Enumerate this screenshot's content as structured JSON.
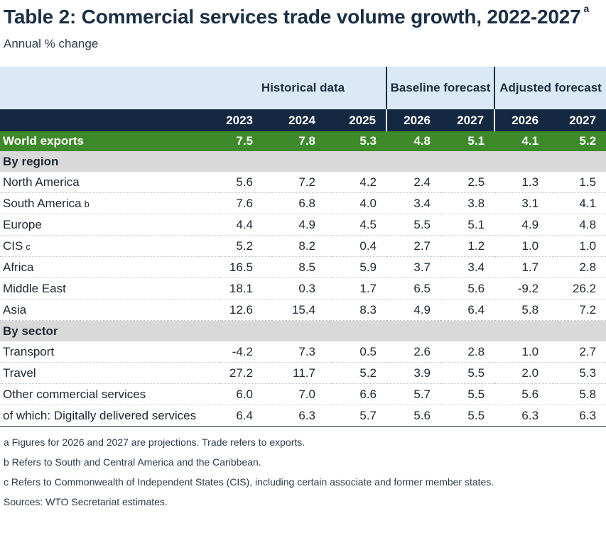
{
  "title": "Table 2: Commercial services trade volume growth, 2022-2027",
  "title_note": "a",
  "subtitle": "Annual % change",
  "groups": {
    "historical": "Historical data",
    "baseline": "Baseline forecast",
    "adjusted": "Adjusted forecast"
  },
  "years": [
    "2023",
    "2024",
    "2025",
    "2026",
    "2027",
    "2026",
    "2027"
  ],
  "world": {
    "label": "World exports",
    "values": [
      "7.5",
      "7.8",
      "5.3",
      "4.8",
      "5.1",
      "4.1",
      "5.2"
    ]
  },
  "by_region": {
    "label": "By region",
    "rows": [
      {
        "label": "North America",
        "note": "",
        "values": [
          "5.6",
          "7.2",
          "4.2",
          "2.4",
          "2.5",
          "1.3",
          "1.5"
        ]
      },
      {
        "label": "South America",
        "note": "b",
        "values": [
          "7.6",
          "6.8",
          "4.0",
          "3.4",
          "3.8",
          "3.1",
          "4.1"
        ]
      },
      {
        "label": "Europe",
        "note": "",
        "values": [
          "4.4",
          "4.9",
          "4.5",
          "5.5",
          "5.1",
          "4.9",
          "4.8"
        ]
      },
      {
        "label": "CIS",
        "note": "c",
        "values": [
          "5.2",
          "8.2",
          "0.4",
          "2.7",
          "1.2",
          "1.0",
          "1.0"
        ]
      },
      {
        "label": "Africa",
        "note": "",
        "values": [
          "16.5",
          "8.5",
          "5.9",
          "3.7",
          "3.4",
          "1.7",
          "2.8"
        ]
      },
      {
        "label": "Middle East",
        "note": "",
        "values": [
          "18.1",
          "0.3",
          "1.7",
          "6.5",
          "5.6",
          "-9.2",
          "26.2"
        ]
      },
      {
        "label": "Asia",
        "note": "",
        "values": [
          "12.6",
          "15.4",
          "8.3",
          "4.9",
          "6.4",
          "5.8",
          "7.2"
        ]
      }
    ]
  },
  "by_sector": {
    "label": "By sector",
    "rows": [
      {
        "label": "Transport",
        "note": "",
        "values": [
          "-4.2",
          "7.3",
          "0.5",
          "2.6",
          "2.8",
          "1.0",
          "2.7"
        ]
      },
      {
        "label": "Travel",
        "note": "",
        "values": [
          "27.2",
          "11.7",
          "5.2",
          "3.9",
          "5.5",
          "2.0",
          "5.3"
        ]
      },
      {
        "label": "Other commercial services",
        "note": "",
        "values": [
          "6.0",
          "7.0",
          "6.6",
          "5.7",
          "5.5",
          "5.6",
          "5.8"
        ]
      },
      {
        "label": "of which: Digitally delivered services",
        "note": "",
        "values": [
          "6.4",
          "6.3",
          "5.7",
          "5.6",
          "5.5",
          "6.3",
          "6.3"
        ]
      }
    ]
  },
  "notes": [
    "a  Figures for 2026 and 2027 are projections. Trade refers to exports.",
    "b  Refers to South and Central America and the Caribbean.",
    "c  Refers to Commonwealth of Independent States (CIS), including certain associate and former member states.",
    "Sources: WTO Secretariat estimates."
  ],
  "chart_data": {
    "type": "table",
    "title": "Table 2: Commercial services trade volume growth, 2022-2027",
    "subtitle": "Annual % change",
    "columns": [
      "Historical 2023",
      "Historical 2024",
      "Historical 2025",
      "Baseline 2026",
      "Baseline 2027",
      "Adjusted 2026",
      "Adjusted 2027"
    ],
    "rows": [
      {
        "name": "World exports",
        "values": [
          7.5,
          7.8,
          5.3,
          4.8,
          5.1,
          4.1,
          5.2
        ]
      },
      {
        "name": "North America",
        "values": [
          5.6,
          7.2,
          4.2,
          2.4,
          2.5,
          1.3,
          1.5
        ]
      },
      {
        "name": "South America",
        "values": [
          7.6,
          6.8,
          4.0,
          3.4,
          3.8,
          3.1,
          4.1
        ]
      },
      {
        "name": "Europe",
        "values": [
          4.4,
          4.9,
          4.5,
          5.5,
          5.1,
          4.9,
          4.8
        ]
      },
      {
        "name": "CIS",
        "values": [
          5.2,
          8.2,
          0.4,
          2.7,
          1.2,
          1.0,
          1.0
        ]
      },
      {
        "name": "Africa",
        "values": [
          16.5,
          8.5,
          5.9,
          3.7,
          3.4,
          1.7,
          2.8
        ]
      },
      {
        "name": "Middle East",
        "values": [
          18.1,
          0.3,
          1.7,
          6.5,
          5.6,
          -9.2,
          26.2
        ]
      },
      {
        "name": "Asia",
        "values": [
          12.6,
          15.4,
          8.3,
          4.9,
          6.4,
          5.8,
          7.2
        ]
      },
      {
        "name": "Transport",
        "values": [
          -4.2,
          7.3,
          0.5,
          2.6,
          2.8,
          1.0,
          2.7
        ]
      },
      {
        "name": "Travel",
        "values": [
          27.2,
          11.7,
          5.2,
          3.9,
          5.5,
          2.0,
          5.3
        ]
      },
      {
        "name": "Other commercial services",
        "values": [
          6.0,
          7.0,
          6.6,
          5.7,
          5.5,
          5.6,
          5.8
        ]
      },
      {
        "name": "of which: Digitally delivered services",
        "values": [
          6.4,
          6.3,
          5.7,
          5.6,
          5.5,
          6.3,
          6.3
        ]
      }
    ]
  }
}
